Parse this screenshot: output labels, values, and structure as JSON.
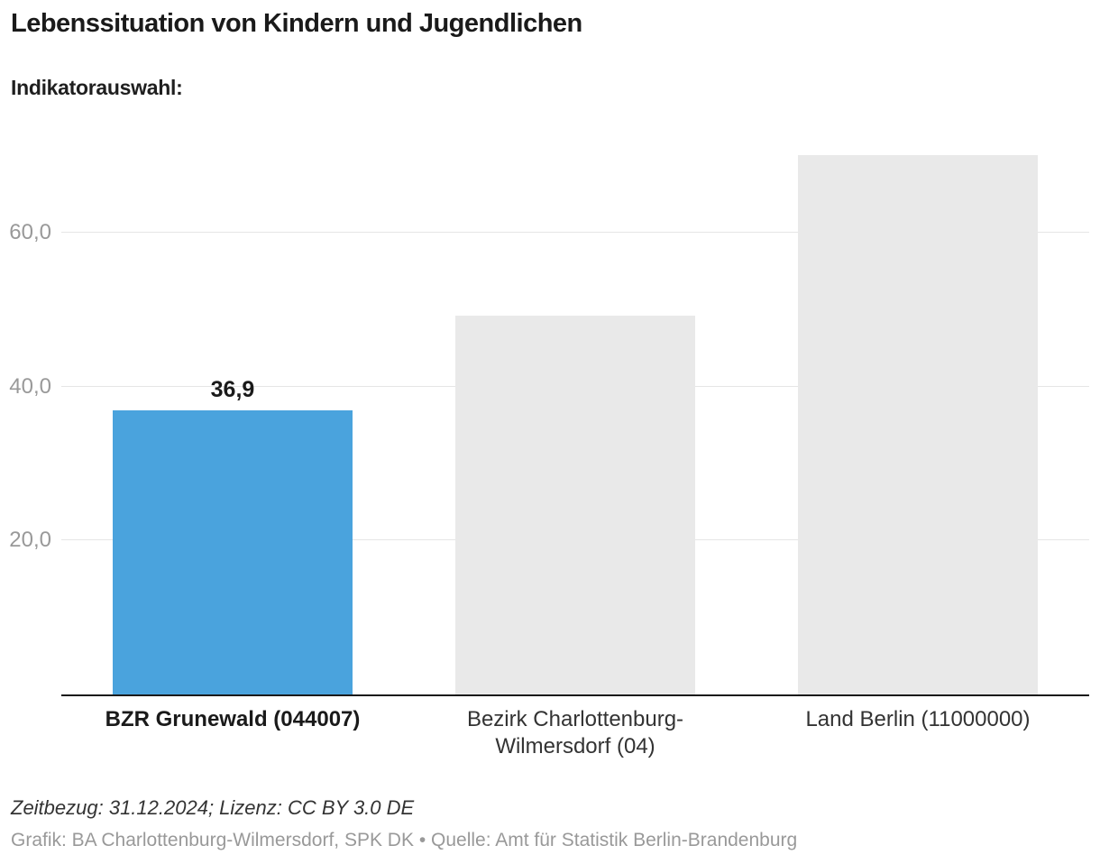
{
  "chart_data": {
    "type": "bar",
    "title": "Lebenssituation von Kindern und Jugendlichen",
    "indicator_label": "Indikatorauswahl:",
    "categories": [
      "BZR Grunewald (044007)",
      "Bezirk Charlottenburg-\nWilmersdorf (04)",
      "Land Berlin (11000000)"
    ],
    "values": [
      36.9,
      49.3,
      70.1
    ],
    "data_labels": [
      "36,9",
      "",
      ""
    ],
    "yticks": [
      20,
      40,
      60
    ],
    "ytick_labels": [
      "20,0",
      "40,0",
      "60,0"
    ],
    "ylim": [
      0,
      73.3
    ],
    "grid": true,
    "legend": "none",
    "colors": [
      "#4aa3dd",
      "#e9e9e9",
      "#e9e9e9"
    ],
    "highlight_color": "#4aa3dd",
    "axis_color": "#1a1a1a",
    "gridline_color": "#e6e6e6"
  },
  "footer": {
    "zeitbezug": "Zeitbezug: 31.12.2024; Lizenz: CC BY 3.0 DE",
    "credits": "Grafik: BA Charlottenburg-Wilmersdorf, SPK DK • Quelle: Amt für Statistik Berlin-Brandenburg"
  }
}
